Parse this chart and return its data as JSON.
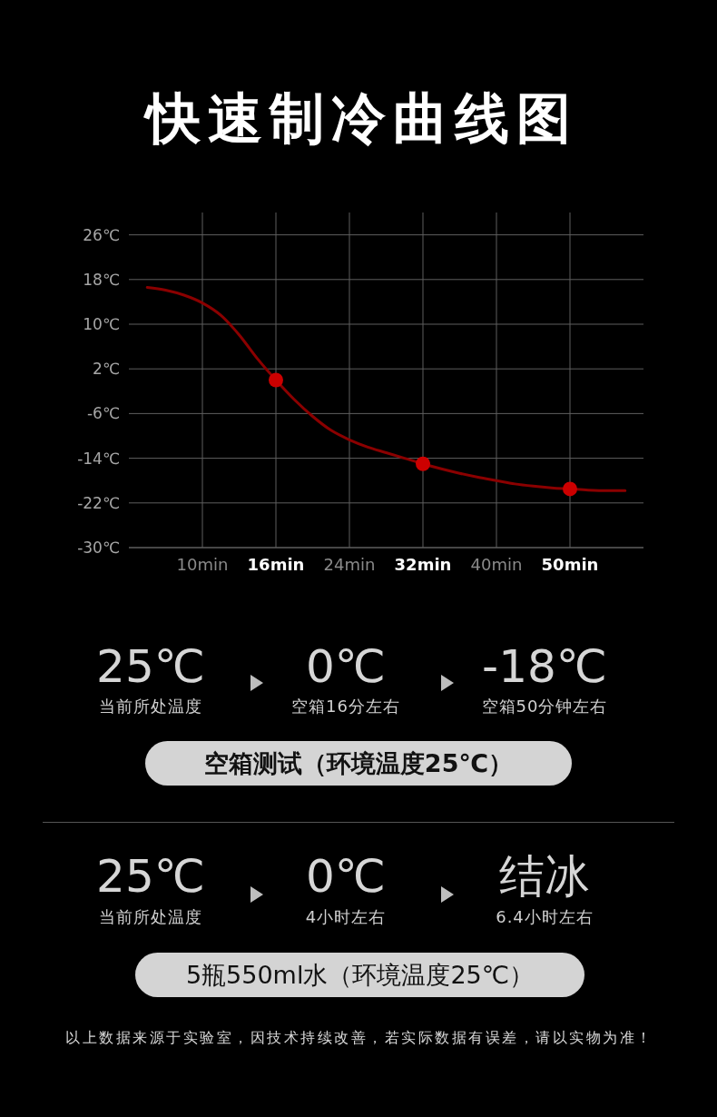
{
  "chart_data": {
    "type": "line",
    "title": "快速制冷曲线图",
    "categories": [
      null,
      null,
      null,
      null,
      "10min",
      null,
      null,
      null,
      "16min",
      null,
      null,
      null,
      "24min",
      null,
      null,
      null,
      "32min",
      null,
      null,
      null,
      "40min",
      null,
      null,
      null,
      "50min",
      null,
      null,
      null,
      null
    ],
    "series": [
      {
        "type": "line",
        "color": "#8b0000",
        "line_style": "solid",
        "values": [
          null,
          16.6,
          16.1,
          15.2,
          13.8,
          11.6,
          8.1,
          3.8,
          0,
          -3.5,
          -6.5,
          -9,
          -10.7,
          -12,
          -13,
          -14,
          -15,
          -15.9,
          -16.7,
          -17.4,
          -18,
          -18.6,
          -19,
          -19.3,
          -19.5,
          -19.7,
          -19.8,
          -19.8,
          null
        ]
      },
      {
        "type": "scatter",
        "color": "#cc0000",
        "marker": "circle",
        "x": [
          "16min",
          "32min",
          "50min"
        ],
        "values": [
          0,
          -15,
          -19.5
        ]
      }
    ],
    "ylim": [
      -30,
      30
    ],
    "yticks": [
      {
        "value": 26,
        "label": "26℃"
      },
      {
        "value": 18,
        "label": "18℃"
      },
      {
        "value": 10,
        "label": "10℃"
      },
      {
        "value": 2,
        "label": "2℃"
      },
      {
        "value": -6,
        "label": "-6℃"
      },
      {
        "value": -14,
        "label": "-14℃"
      },
      {
        "value": -22,
        "label": "-22℃"
      },
      {
        "value": -30,
        "label": "-30℃"
      }
    ],
    "grid": true,
    "annotations": [
      "25℃",
      "当前所处温度",
      "0℃",
      "空箱16分左右",
      "-18℃",
      "空箱50分钟左右",
      "空箱测试（环境温度25℃）",
      "25℃",
      "当前所处温度",
      "0℃",
      "4小时左右",
      "结冰",
      "6.4小时左右",
      "5瓶550ml水（环境温度25℃）",
      "以上数据来源于实验室，因技术持续改善，若实际数据有误差，请以实物为准！"
    ]
  }
}
